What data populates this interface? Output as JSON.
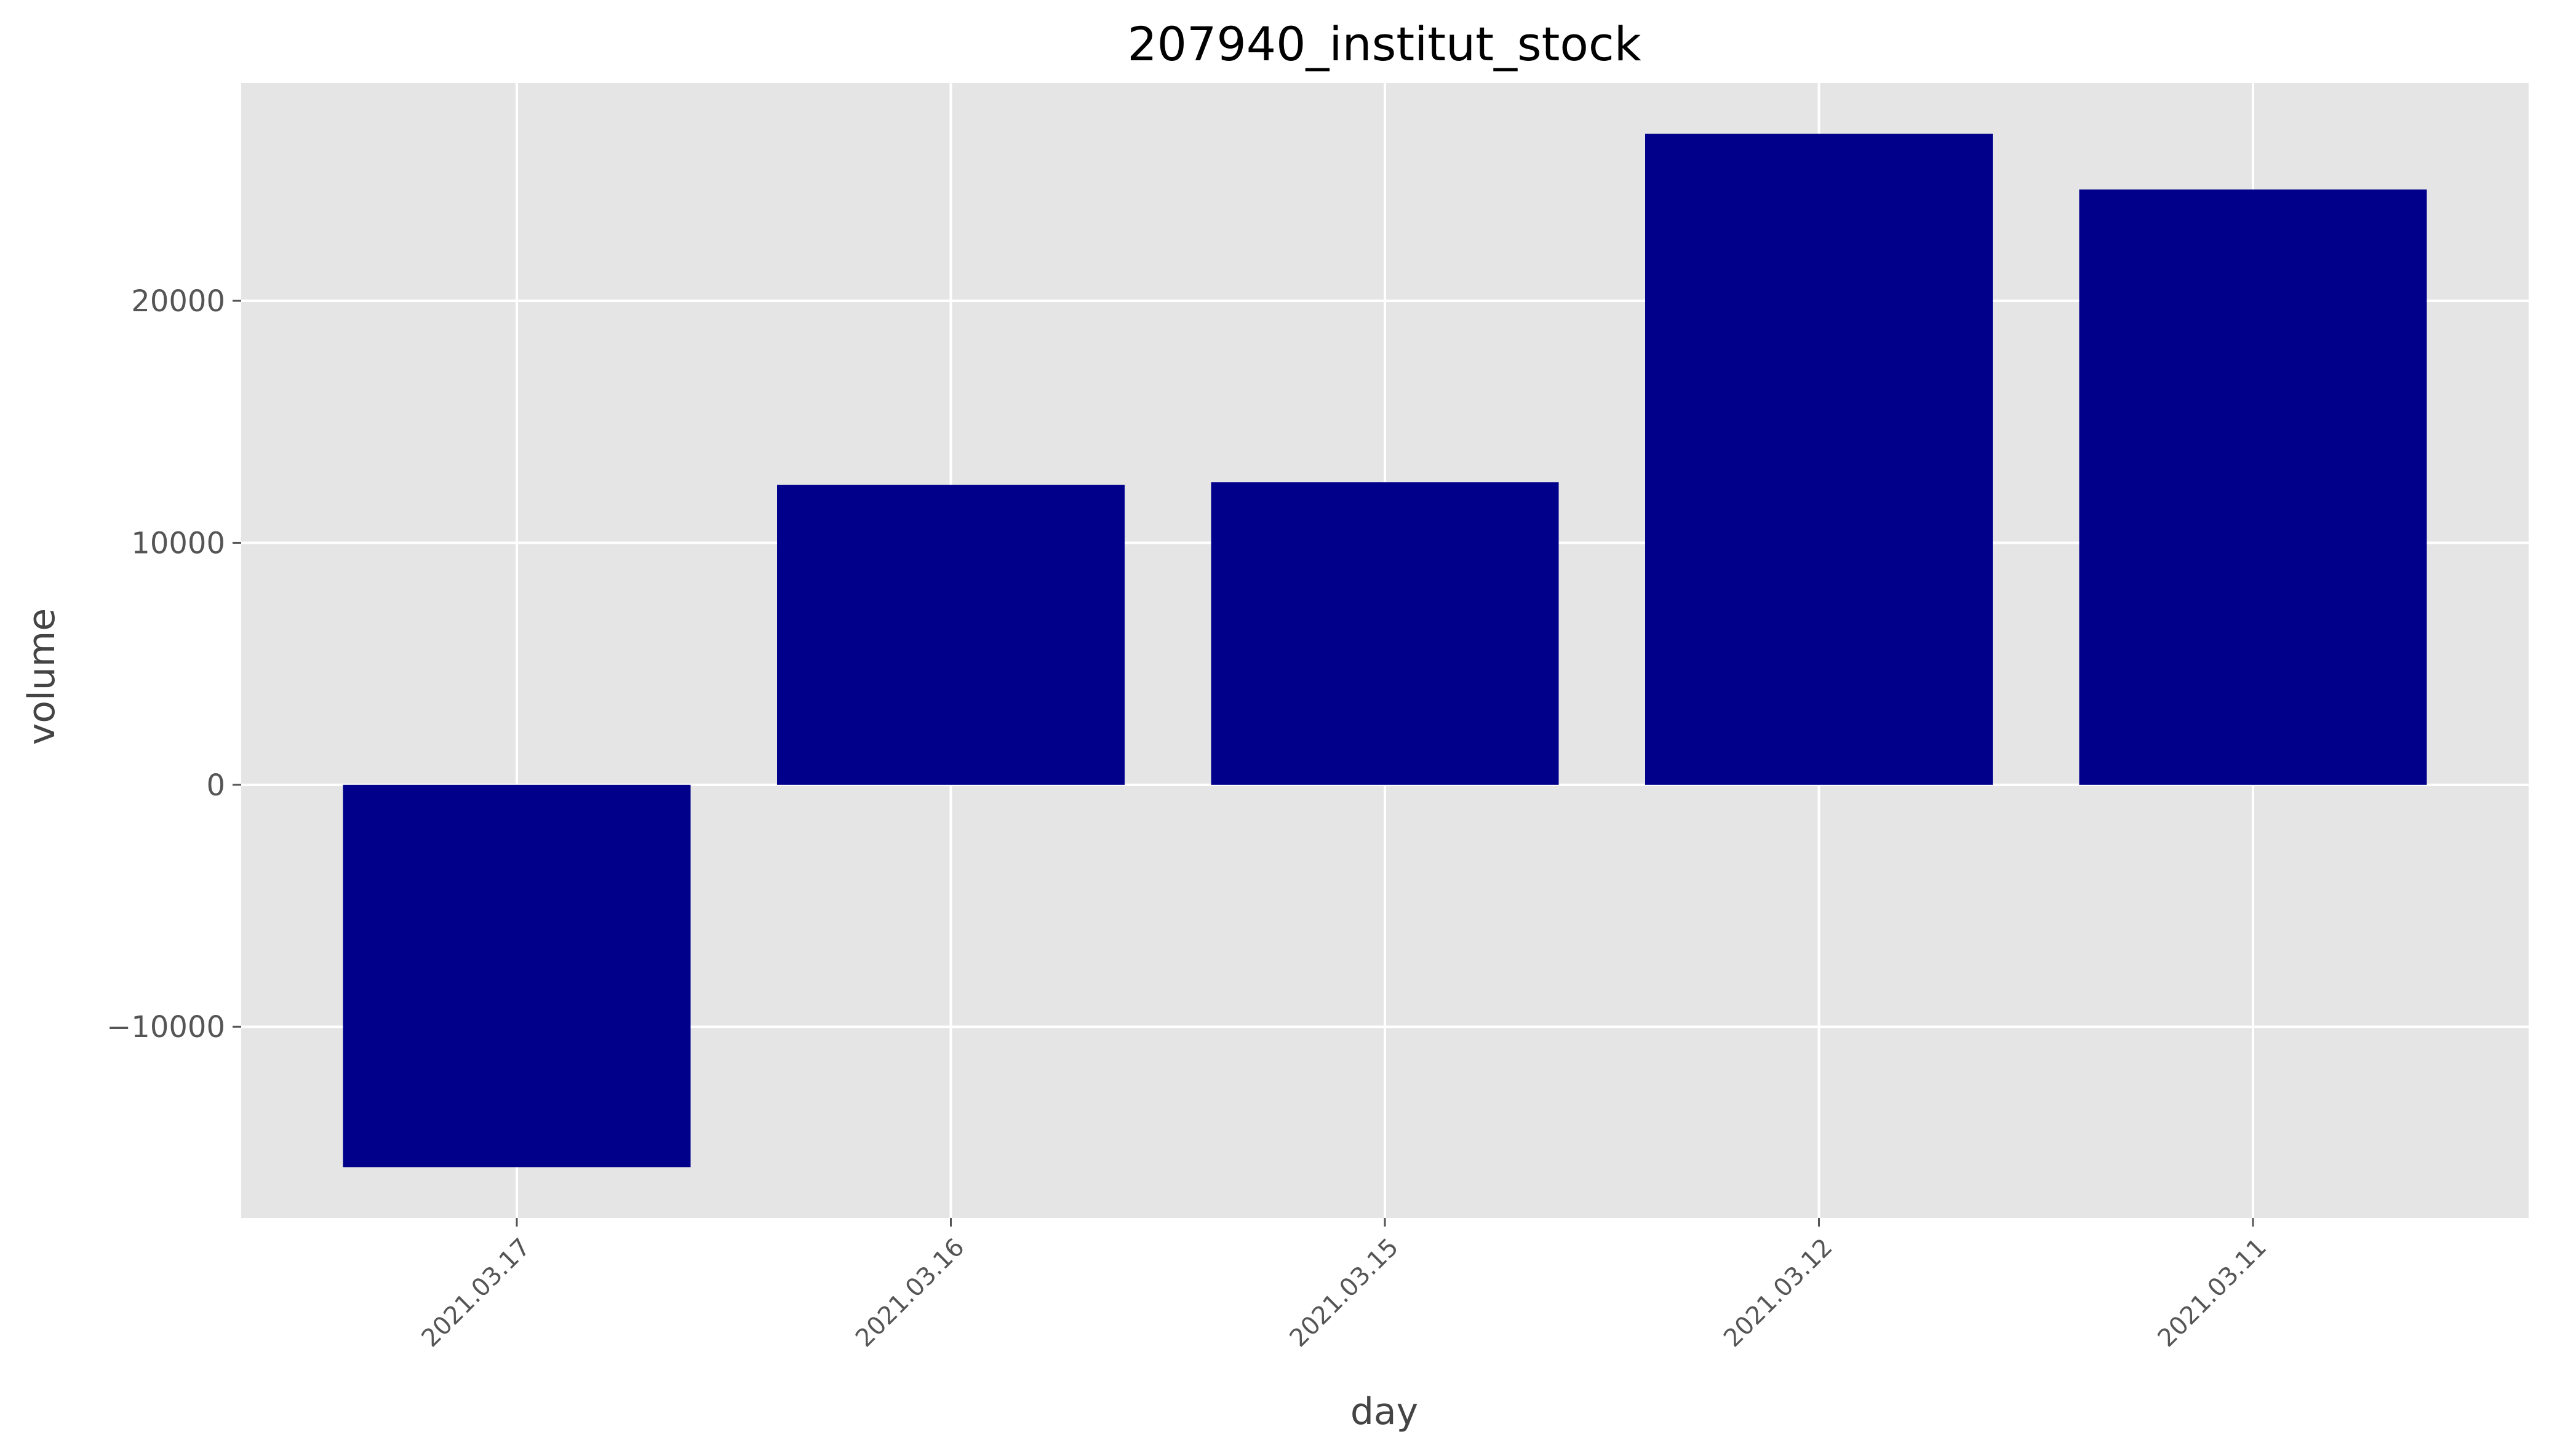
{
  "chart_data": {
    "type": "bar",
    "title": "207940_institut_stock",
    "xlabel": "day",
    "ylabel": "volume",
    "categories": [
      "2021.03.17",
      "2021.03.16",
      "2021.03.15",
      "2021.03.12",
      "2021.03.11"
    ],
    "values": [
      -15800,
      12400,
      12500,
      26900,
      24600
    ],
    "ylim": [
      -17900,
      29000
    ],
    "yticks": [
      -10000,
      0,
      10000,
      20000
    ],
    "ytick_labels": [
      "−10000",
      "0",
      "10000",
      "20000"
    ],
    "grid": true,
    "legend": "none",
    "bar_color": "#00008b",
    "plot_background": "#e5e5e5",
    "grid_color": "#ffffff"
  }
}
